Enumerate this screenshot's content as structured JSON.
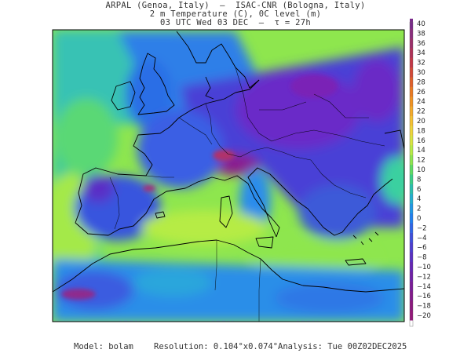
{
  "header": {
    "line1": "ARPAL (Genoa, Italy)  —  ISAC-CNR (Bologna, Italy)",
    "line2": "2 m Temperature (C), 0C level (m)",
    "line3": "03 UTC Wed 03 DEC  —  τ = 27h"
  },
  "colorbar": {
    "labels": [
      "40",
      "38",
      "36",
      "34",
      "32",
      "30",
      "28",
      "26",
      "24",
      "22",
      "20",
      "18",
      "16",
      "14",
      "12",
      "10",
      "8",
      "6",
      "4",
      "2",
      "0",
      "−2",
      "−4",
      "−6",
      "−8",
      "−10",
      "−12",
      "−14",
      "−16",
      "−18",
      "−20"
    ],
    "colors": [
      "#7a2a8a",
      "#8b2e7d",
      "#9c2f6a",
      "#b03258",
      "#c43847",
      "#d44a38",
      "#e0602b",
      "#ea7a22",
      "#f19322",
      "#f5ab2a",
      "#f6c232",
      "#eed63b",
      "#d9e540",
      "#b8ec46",
      "#8fe64f",
      "#5fdc63",
      "#3acf86",
      "#2ac0ae",
      "#22b0d0",
      "#1f98e6",
      "#2080f0",
      "#2f66e8",
      "#3f4fdc",
      "#4d3ed0",
      "#5a30c2",
      "#6626b4",
      "#7020a6",
      "#7a1c98",
      "#831a8b",
      "#8c187e",
      "#94187a"
    ]
  },
  "watermark": "ARPAL",
  "footer": {
    "model": "Model: bolam",
    "resolution": "Resolution: 0.104°x0.074°",
    "analysis": "Analysis: Tue 00Z02DEC2025"
  }
}
